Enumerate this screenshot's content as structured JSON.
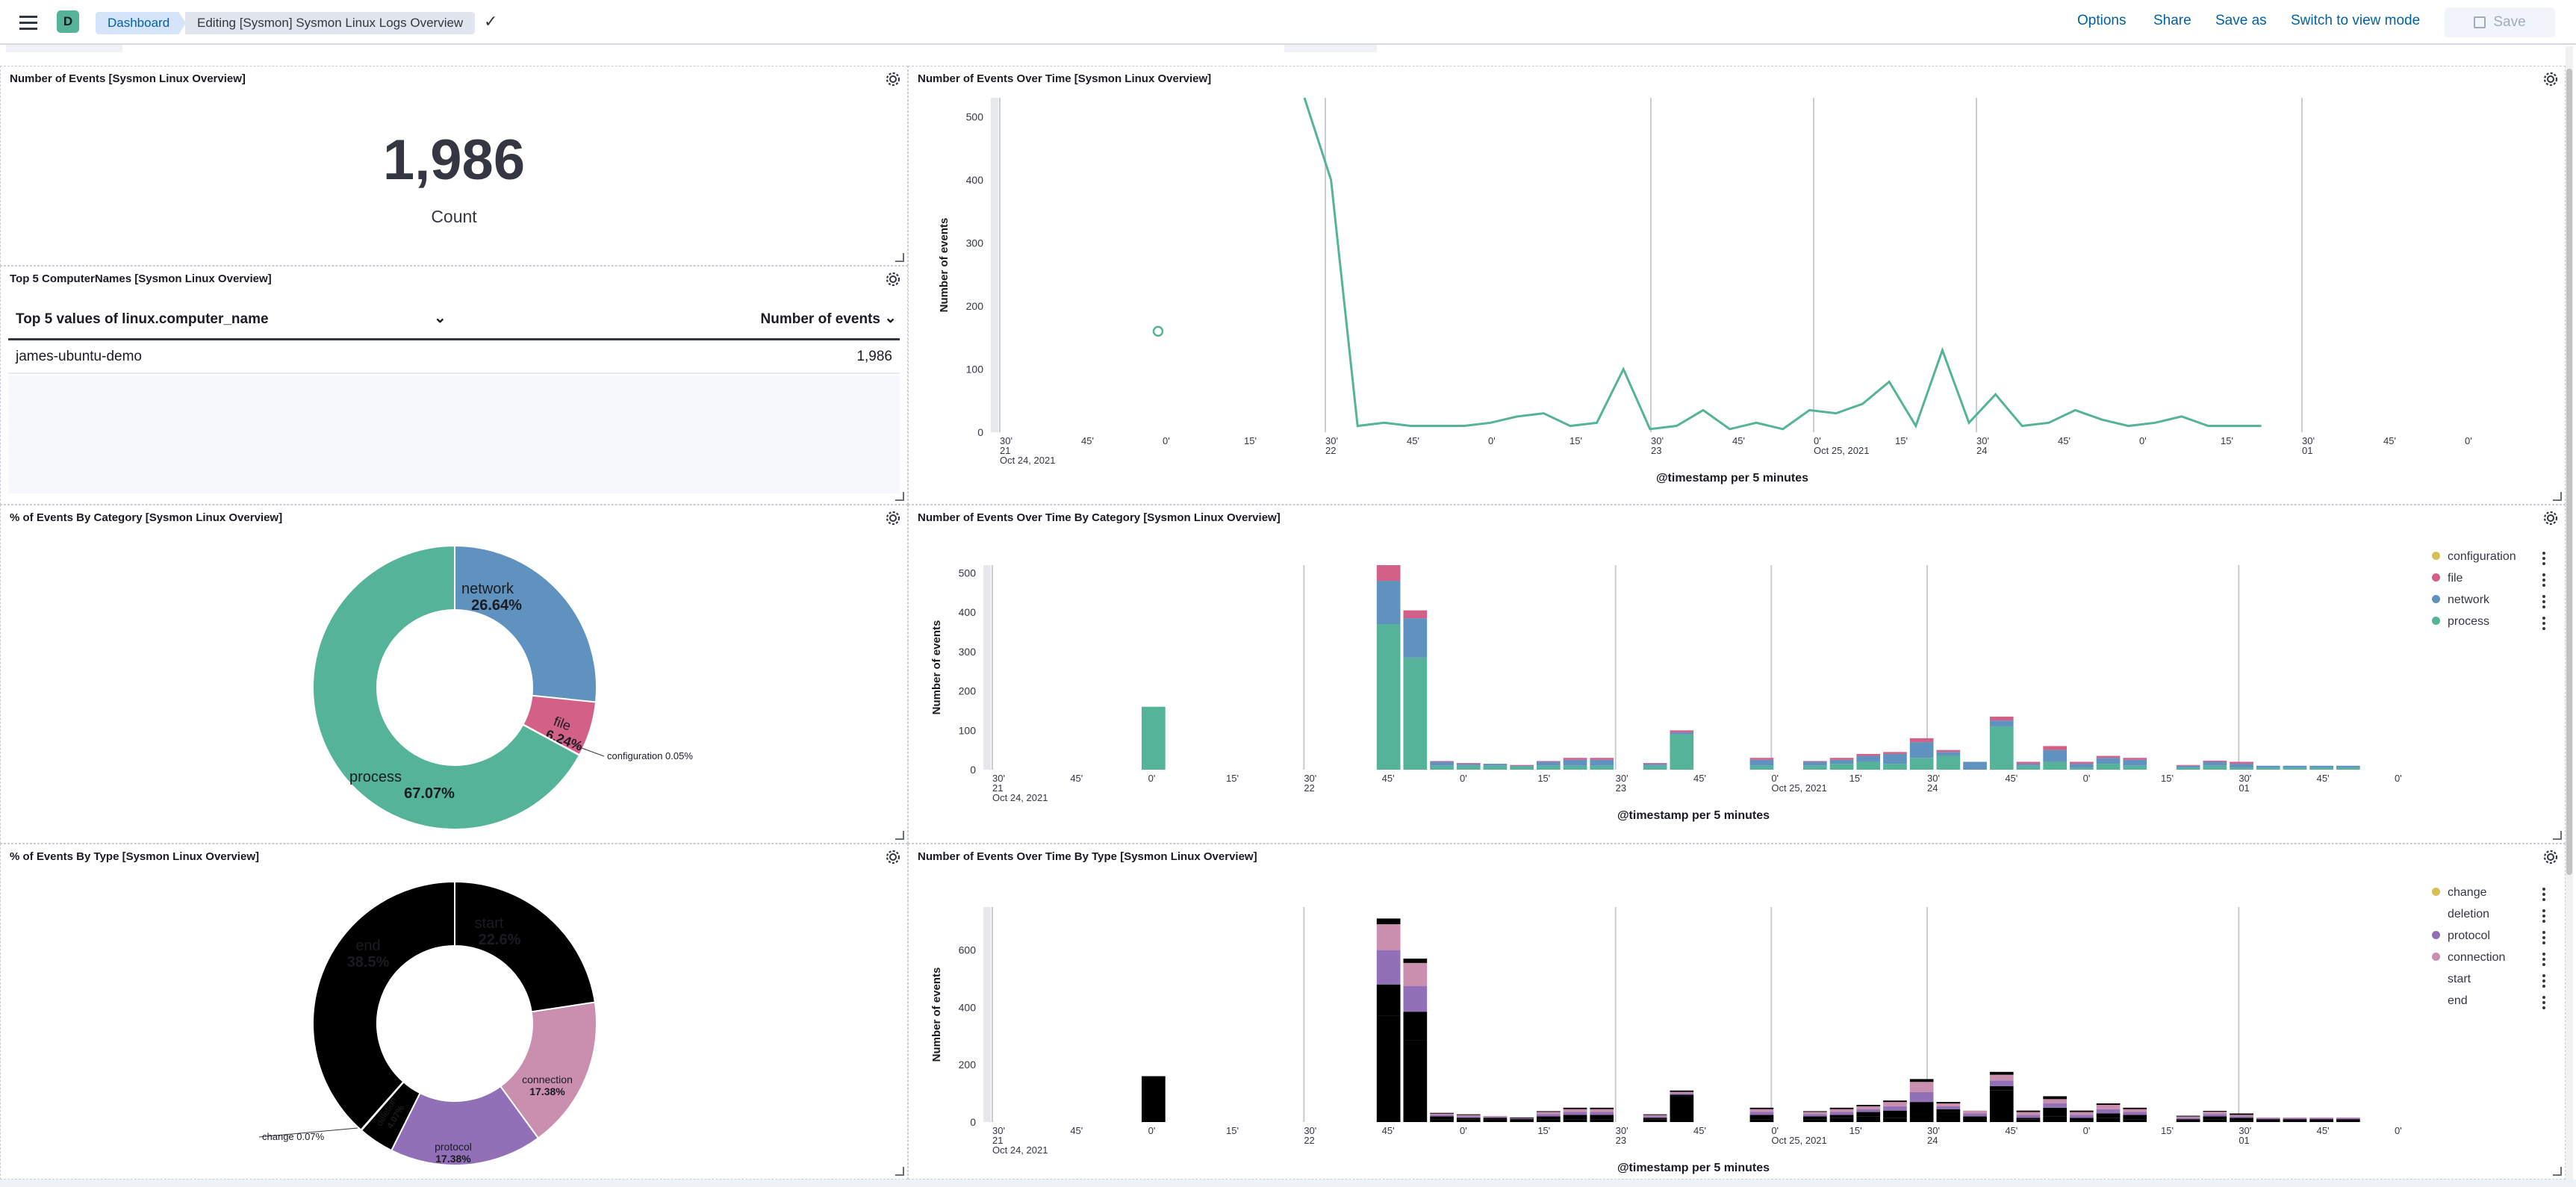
{
  "header": {
    "avatar_letter": "D",
    "breadcrumb_root": "Dashboard",
    "breadcrumb_current": "Editing [Sysmon] Sysmon Linux Logs Overview",
    "actions": [
      "Options",
      "Share",
      "Save as",
      "Switch to view mode"
    ],
    "save_label": "Save"
  },
  "colors": {
    "accent": "#0061a6",
    "configuration": "#d6bf57",
    "file": "#d36086",
    "network": "#6092c0",
    "process": "#54b399",
    "protocol": "#9170b8",
    "connection": "#ca8eae",
    "change": "#d6bf57",
    "line": "#54b399"
  },
  "panels": {
    "metric": {
      "title": "Number of Events [Sysmon Linux Overview]",
      "value": "1,986",
      "label": "Count"
    },
    "top5": {
      "title": "Top 5 ComputerNames [Sysmon Linux Overview]",
      "col1": "Top 5 values of linux.computer_name",
      "col2": "Number of events",
      "rows": [
        {
          "name": "james-ubuntu-demo",
          "count": "1,986"
        }
      ]
    },
    "line": {
      "title": "Number of Events Over Time [Sysmon Linux Overview]"
    },
    "pie_category": {
      "title": "% of Events By Category [Sysmon Linux Overview]"
    },
    "bar_category": {
      "title": "Number of Events Over Time By Category [Sysmon Linux Overview]"
    },
    "pie_type": {
      "title": "% of Events By Type [Sysmon Linux Overview]"
    },
    "bar_type": {
      "title": "Number of Events Over Time By Type [Sysmon Linux Overview]"
    }
  },
  "chart_data": [
    {
      "id": "line",
      "type": "line",
      "xlabel": "@timestamp per 5 minutes",
      "ylabel": "Number of events",
      "ylim": [
        0,
        530
      ],
      "yticks": [
        0,
        100,
        200,
        300,
        400,
        500
      ],
      "xtick_labels": [
        "30'\n21\nOct 24, 2021",
        "45'",
        "0'",
        "15'",
        "30'\n22",
        "45'",
        "0'",
        "15'",
        "30'\n23",
        "45'",
        "0'\nOct 25, 2021",
        "15'",
        "30'\n24",
        "45'",
        "0'",
        "15'",
        "30'\n01",
        "45'",
        "0'"
      ],
      "isolated_point": {
        "x": 7,
        "y": 160
      },
      "values": [
        530,
        400,
        10,
        15,
        10,
        10,
        10,
        15,
        25,
        30,
        10,
        15,
        100,
        5,
        10,
        35,
        5,
        15,
        5,
        35,
        30,
        45,
        80,
        10,
        130,
        15,
        60,
        10,
        15,
        35,
        20,
        10,
        15,
        25,
        10,
        10,
        10
      ]
    },
    {
      "id": "pie_category",
      "type": "pie",
      "slices": [
        {
          "label": "network",
          "pct": 26.64,
          "text": "26.64%"
        },
        {
          "label": "file",
          "pct": 6.24,
          "text": "6.24%"
        },
        {
          "label": "configuration",
          "pct": 0.05,
          "text": "0.05%"
        },
        {
          "label": "process",
          "pct": 67.07,
          "text": "67.07%"
        }
      ]
    },
    {
      "id": "bar_category",
      "type": "bar",
      "stacked": true,
      "xlabel": "@timestamp per 5 minutes",
      "ylabel": "Number of events",
      "ylim": [
        0,
        520
      ],
      "yticks": [
        0,
        100,
        200,
        300,
        400,
        500
      ],
      "legend": [
        "configuration",
        "file",
        "network",
        "process"
      ],
      "xtick_labels": [
        "30'\n21\nOct 24, 2021",
        "45'",
        "0'",
        "15'",
        "30'\n22",
        "45'",
        "0'",
        "15'",
        "30'\n23",
        "45'",
        "0'\nOct 25, 2021",
        "15'",
        "30'\n24",
        "45'",
        "0'",
        "15'",
        "30'\n01",
        "45'",
        "0'"
      ],
      "series": [
        {
          "name": "process",
          "values": [
            160,
            0,
            0,
            0,
            0,
            370,
            285,
            10,
            10,
            10,
            8,
            10,
            10,
            10,
            0,
            10,
            90,
            0,
            0,
            10,
            0,
            10,
            15,
            20,
            15,
            30,
            35,
            0,
            110,
            10,
            20,
            5,
            15,
            10,
            0,
            5,
            10,
            5,
            5,
            5,
            5,
            5
          ]
        },
        {
          "name": "network",
          "values": [
            0,
            0,
            0,
            0,
            0,
            110,
            100,
            10,
            5,
            5,
            3,
            10,
            15,
            15,
            0,
            5,
            5,
            0,
            0,
            15,
            0,
            10,
            10,
            15,
            25,
            40,
            10,
            20,
            15,
            5,
            30,
            10,
            15,
            15,
            0,
            5,
            10,
            10,
            5,
            5,
            5,
            5
          ]
        },
        {
          "name": "file",
          "values": [
            0,
            0,
            0,
            0,
            0,
            40,
            20,
            2,
            2,
            0,
            1,
            2,
            5,
            5,
            0,
            2,
            5,
            0,
            0,
            5,
            0,
            2,
            5,
            5,
            5,
            10,
            5,
            0,
            10,
            5,
            10,
            5,
            5,
            5,
            0,
            2,
            3,
            5,
            0,
            0,
            0,
            0
          ]
        }
      ]
    },
    {
      "id": "pie_type",
      "type": "pie",
      "slices": [
        {
          "label": "start",
          "pct": 22.6,
          "text": "22.6%"
        },
        {
          "label": "connection",
          "pct": 17.38,
          "text": "17.38%"
        },
        {
          "label": "protocol",
          "pct": 17.38,
          "text": "17.38%"
        },
        {
          "label": "deletion",
          "pct": 4.07,
          "text": "4.07%"
        },
        {
          "label": "change",
          "pct": 0.07,
          "text": "0.07%"
        },
        {
          "label": "end",
          "pct": 38.5,
          "text": "38.5%"
        }
      ]
    },
    {
      "id": "bar_type",
      "type": "bar",
      "stacked": true,
      "xlabel": "@timestamp per 5 minutes",
      "ylabel": "Number of events",
      "ylim": [
        0,
        750
      ],
      "yticks": [
        0,
        200,
        400,
        600
      ],
      "legend": [
        "change",
        "deletion",
        "protocol",
        "connection",
        "start",
        "end"
      ],
      "xtick_labels": [
        "30'\n21\nOct 24, 2021",
        "45'",
        "0'",
        "15'",
        "30'\n22",
        "45'",
        "0'",
        "15'",
        "30'\n23",
        "45'",
        "0'\nOct 25, 2021",
        "15'",
        "30'\n24",
        "45'",
        "0'",
        "15'",
        "30'\n01",
        "45'",
        "0'"
      ],
      "series": [
        {
          "name": "end",
          "values": [
            0,
            0,
            0,
            0,
            0,
            370,
            285,
            10,
            10,
            10,
            8,
            10,
            10,
            10,
            0,
            10,
            90,
            0,
            0,
            10,
            0,
            10,
            15,
            20,
            15,
            30,
            35,
            0,
            110,
            10,
            20,
            5,
            15,
            10,
            0,
            5,
            10,
            5,
            5,
            5,
            5,
            5
          ]
        },
        {
          "name": "start",
          "values": [
            160,
            0,
            0,
            0,
            0,
            110,
            100,
            10,
            5,
            5,
            3,
            10,
            15,
            15,
            0,
            5,
            5,
            0,
            0,
            15,
            0,
            10,
            10,
            15,
            25,
            40,
            10,
            20,
            15,
            5,
            30,
            10,
            15,
            15,
            0,
            5,
            10,
            10,
            5,
            5,
            5,
            5
          ]
        },
        {
          "name": "protocol",
          "values": [
            0,
            0,
            0,
            0,
            0,
            120,
            90,
            5,
            5,
            3,
            2,
            8,
            10,
            10,
            0,
            5,
            5,
            0,
            0,
            10,
            0,
            8,
            10,
            10,
            15,
            35,
            10,
            10,
            20,
            10,
            15,
            10,
            15,
            10,
            0,
            5,
            8,
            5,
            3,
            3,
            3,
            3
          ]
        },
        {
          "name": "connection",
          "values": [
            0,
            0,
            0,
            0,
            0,
            90,
            80,
            5,
            5,
            3,
            2,
            8,
            10,
            10,
            0,
            5,
            5,
            0,
            0,
            10,
            0,
            8,
            10,
            10,
            15,
            35,
            10,
            10,
            20,
            10,
            15,
            10,
            15,
            10,
            0,
            5,
            8,
            5,
            3,
            3,
            3,
            3
          ]
        },
        {
          "name": "deletion",
          "values": [
            0,
            0,
            0,
            0,
            0,
            20,
            15,
            2,
            2,
            0,
            1,
            2,
            5,
            5,
            0,
            2,
            5,
            0,
            0,
            5,
            0,
            2,
            5,
            5,
            5,
            10,
            5,
            0,
            10,
            5,
            10,
            5,
            5,
            5,
            0,
            2,
            3,
            5,
            0,
            0,
            0,
            0
          ]
        }
      ]
    }
  ]
}
